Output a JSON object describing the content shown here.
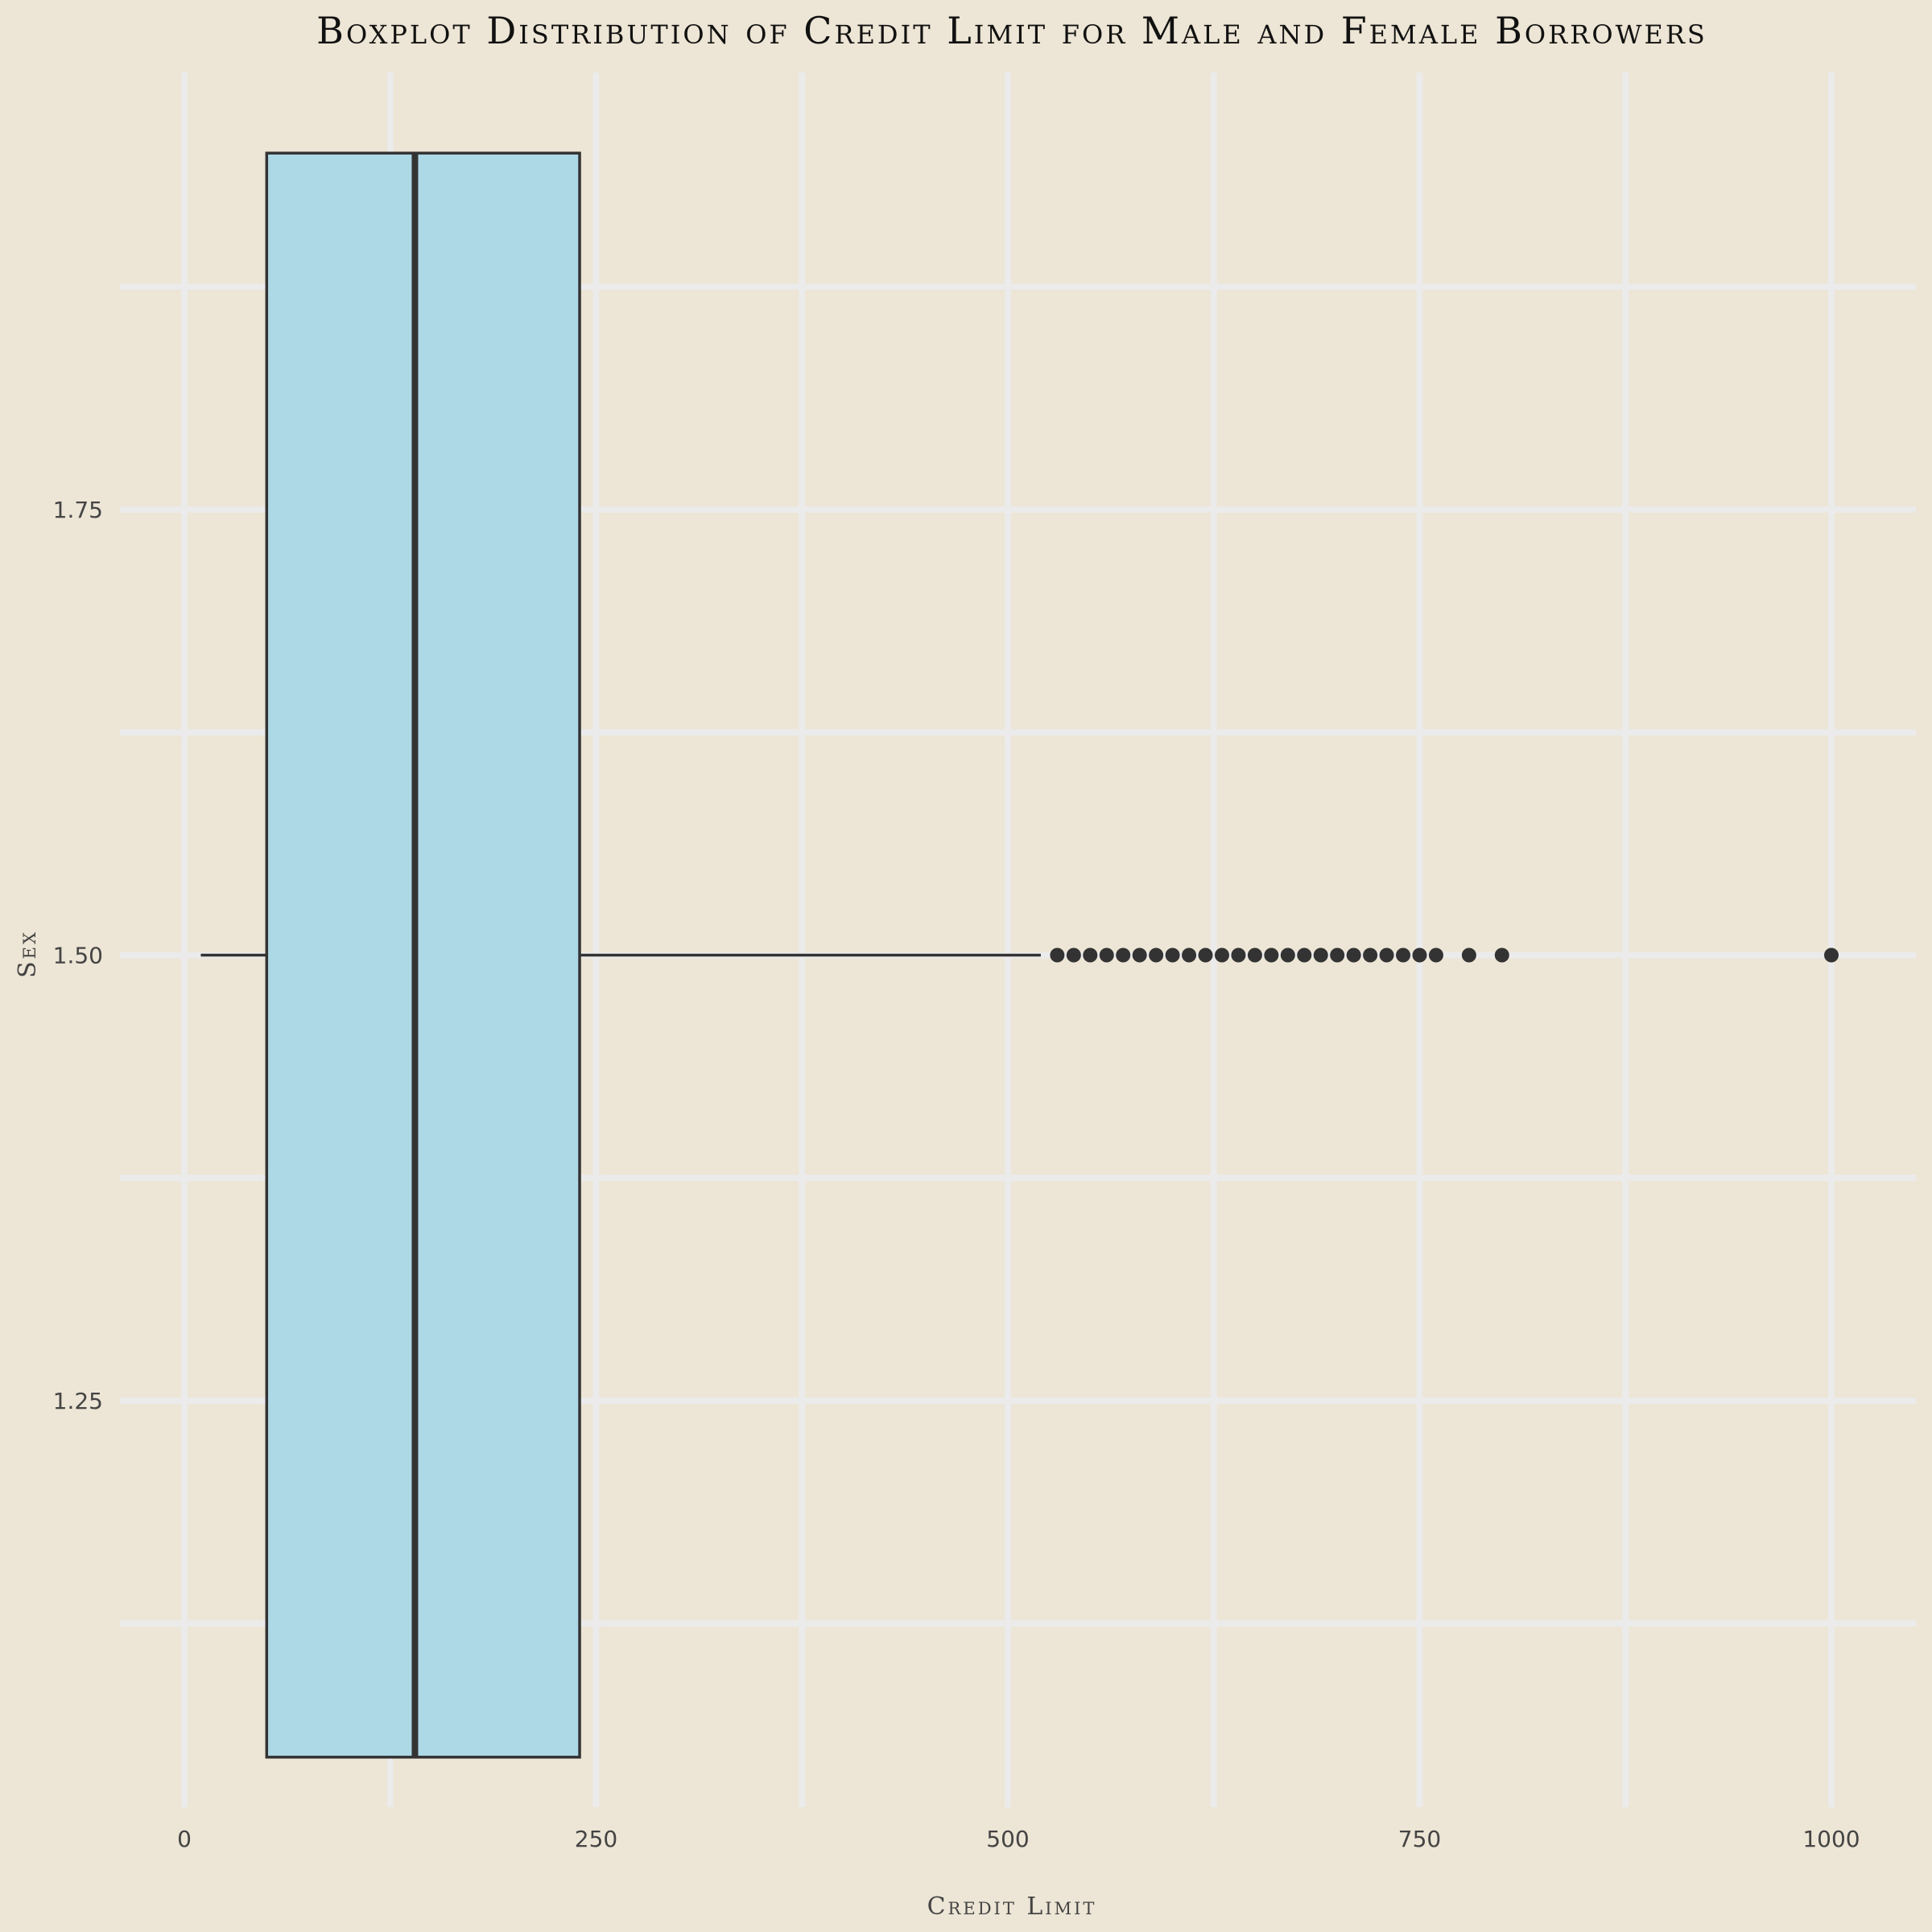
{
  "chart_data": {
    "type": "boxplot",
    "title": "Boxplot Distribution of Credit Limit for Male and Female Borrowers",
    "xlabel": "Credit Limit",
    "ylabel": "Sex",
    "xlim": [
      -22,
      1022
    ],
    "ylim": [
      1.04,
      1.96
    ],
    "x_ticks": [
      0,
      250,
      500,
      750,
      1000
    ],
    "x_tick_labels": [
      "0",
      "250",
      "500",
      "750",
      "1000"
    ],
    "y_ticks": [
      1.25,
      1.5,
      1.75
    ],
    "y_tick_labels": [
      "1.25",
      "1.50",
      "1.75"
    ],
    "grid": true,
    "box": {
      "y_center": 1.5,
      "y_extent": [
        1.05,
        1.95
      ],
      "whisker_low": 10,
      "q1": 50,
      "median": 140,
      "q3": 240,
      "whisker_high": 520,
      "fill_color": "#add8e6",
      "line_color": "#333333"
    },
    "outliers": [
      530,
      540,
      550,
      560,
      570,
      580,
      590,
      600,
      610,
      620,
      630,
      640,
      650,
      660,
      670,
      680,
      690,
      700,
      710,
      720,
      730,
      740,
      750,
      760,
      780,
      800,
      1000
    ]
  },
  "colors": {
    "background": "#ede5d5",
    "grid": "#ebebeb",
    "box_fill": "#add8e6",
    "box_line": "#333333"
  }
}
